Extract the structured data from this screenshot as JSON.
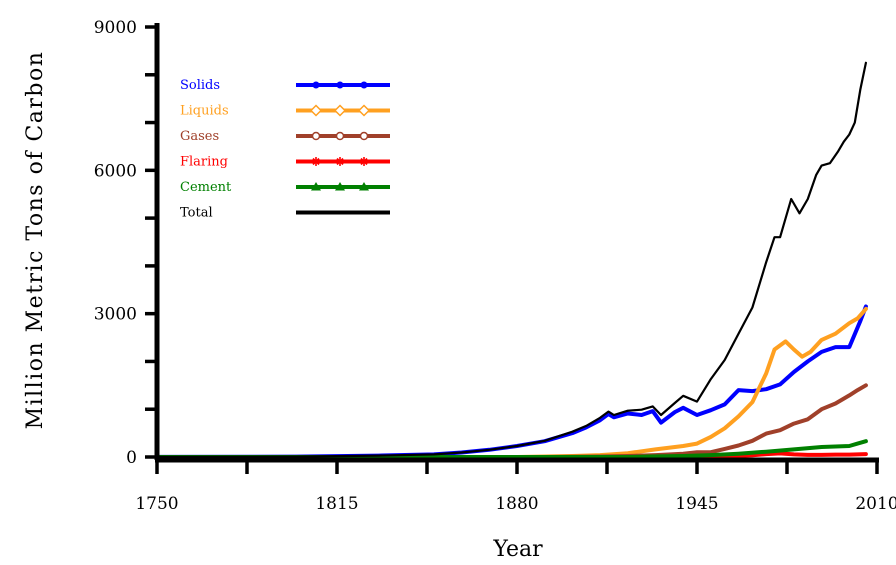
{
  "chart_data": {
    "type": "line",
    "title": "",
    "xlabel": "Year",
    "ylabel": "Million Metric Tons of Carbon",
    "xlim": [
      1750,
      2010
    ],
    "ylim": [
      0,
      9000
    ],
    "x_ticks": [
      1750,
      1815,
      1880,
      1945,
      2010
    ],
    "y_ticks": [
      0,
      3000,
      6000,
      9000
    ],
    "grid": false,
    "legend_position": "top-left",
    "series": [
      {
        "name": "Solids",
        "color": "#0000ff",
        "marker": "circle",
        "points": [
          [
            1750,
            3
          ],
          [
            1800,
            8
          ],
          [
            1830,
            30
          ],
          [
            1850,
            55
          ],
          [
            1860,
            95
          ],
          [
            1870,
            150
          ],
          [
            1880,
            230
          ],
          [
            1890,
            330
          ],
          [
            1900,
            500
          ],
          [
            1905,
            620
          ],
          [
            1910,
            770
          ],
          [
            1913,
            900
          ],
          [
            1915,
            830
          ],
          [
            1920,
            910
          ],
          [
            1925,
            880
          ],
          [
            1929,
            960
          ],
          [
            1932,
            720
          ],
          [
            1937,
            940
          ],
          [
            1940,
            1030
          ],
          [
            1945,
            880
          ],
          [
            1950,
            980
          ],
          [
            1955,
            1100
          ],
          [
            1960,
            1400
          ],
          [
            1965,
            1380
          ],
          [
            1970,
            1420
          ],
          [
            1975,
            1520
          ],
          [
            1980,
            1780
          ],
          [
            1985,
            2000
          ],
          [
            1990,
            2200
          ],
          [
            1995,
            2300
          ],
          [
            2000,
            2300
          ],
          [
            2004,
            2850
          ],
          [
            2006,
            3150
          ]
        ]
      },
      {
        "name": "Liquids",
        "color": "#ffa020",
        "marker": "diamond",
        "points": [
          [
            1750,
            0
          ],
          [
            1880,
            0
          ],
          [
            1900,
            20
          ],
          [
            1910,
            40
          ],
          [
            1920,
            80
          ],
          [
            1930,
            160
          ],
          [
            1940,
            230
          ],
          [
            1945,
            280
          ],
          [
            1950,
            420
          ],
          [
            1955,
            600
          ],
          [
            1960,
            850
          ],
          [
            1965,
            1150
          ],
          [
            1970,
            1750
          ],
          [
            1973,
            2250
          ],
          [
            1977,
            2420
          ],
          [
            1980,
            2250
          ],
          [
            1983,
            2100
          ],
          [
            1986,
            2200
          ],
          [
            1990,
            2450
          ],
          [
            1995,
            2580
          ],
          [
            2000,
            2800
          ],
          [
            2003,
            2900
          ],
          [
            2006,
            3100
          ]
        ]
      },
      {
        "name": "Gases",
        "color": "#a0402a",
        "marker": "open-circle",
        "points": [
          [
            1750,
            0
          ],
          [
            1890,
            0
          ],
          [
            1910,
            10
          ],
          [
            1920,
            20
          ],
          [
            1930,
            40
          ],
          [
            1940,
            70
          ],
          [
            1945,
            100
          ],
          [
            1950,
            100
          ],
          [
            1955,
            170
          ],
          [
            1960,
            240
          ],
          [
            1965,
            340
          ],
          [
            1970,
            490
          ],
          [
            1975,
            560
          ],
          [
            1980,
            700
          ],
          [
            1985,
            790
          ],
          [
            1990,
            1000
          ],
          [
            1995,
            1120
          ],
          [
            2000,
            1290
          ],
          [
            2003,
            1400
          ],
          [
            2006,
            1500
          ]
        ]
      },
      {
        "name": "Flaring",
        "color": "#ff0000",
        "marker": "asterisk",
        "points": [
          [
            1750,
            0
          ],
          [
            1950,
            0
          ],
          [
            1955,
            15
          ],
          [
            1965,
            35
          ],
          [
            1970,
            60
          ],
          [
            1975,
            75
          ],
          [
            1980,
            55
          ],
          [
            1985,
            45
          ],
          [
            1990,
            45
          ],
          [
            1995,
            50
          ],
          [
            2000,
            50
          ],
          [
            2006,
            60
          ]
        ]
      },
      {
        "name": "Cement",
        "color": "#008000",
        "marker": "triangle",
        "points": [
          [
            1750,
            0
          ],
          [
            1920,
            0
          ],
          [
            1928,
            10
          ],
          [
            1940,
            20
          ],
          [
            1950,
            40
          ],
          [
            1960,
            70
          ],
          [
            1970,
            110
          ],
          [
            1980,
            160
          ],
          [
            1990,
            210
          ],
          [
            2000,
            230
          ],
          [
            2003,
            280
          ],
          [
            2006,
            330
          ]
        ]
      },
      {
        "name": "Total",
        "color": "#000000",
        "marker": "none",
        "points": [
          [
            1750,
            3
          ],
          [
            1800,
            8
          ],
          [
            1830,
            30
          ],
          [
            1850,
            55
          ],
          [
            1860,
            95
          ],
          [
            1870,
            150
          ],
          [
            1880,
            230
          ],
          [
            1890,
            340
          ],
          [
            1900,
            530
          ],
          [
            1905,
            650
          ],
          [
            1910,
            820
          ],
          [
            1913,
            950
          ],
          [
            1915,
            880
          ],
          [
            1920,
            970
          ],
          [
            1925,
            990
          ],
          [
            1929,
            1060
          ],
          [
            1932,
            880
          ],
          [
            1937,
            1130
          ],
          [
            1940,
            1280
          ],
          [
            1945,
            1160
          ],
          [
            1950,
            1630
          ],
          [
            1955,
            2030
          ],
          [
            1960,
            2580
          ],
          [
            1965,
            3130
          ],
          [
            1970,
            4080
          ],
          [
            1973,
            4600
          ],
          [
            1975,
            4600
          ],
          [
            1979,
            5400
          ],
          [
            1982,
            5100
          ],
          [
            1985,
            5400
          ],
          [
            1988,
            5900
          ],
          [
            1990,
            6100
          ],
          [
            1993,
            6150
          ],
          [
            1996,
            6400
          ],
          [
            1998,
            6600
          ],
          [
            2000,
            6750
          ],
          [
            2002,
            7000
          ],
          [
            2004,
            7700
          ],
          [
            2006,
            8250
          ]
        ]
      }
    ]
  }
}
